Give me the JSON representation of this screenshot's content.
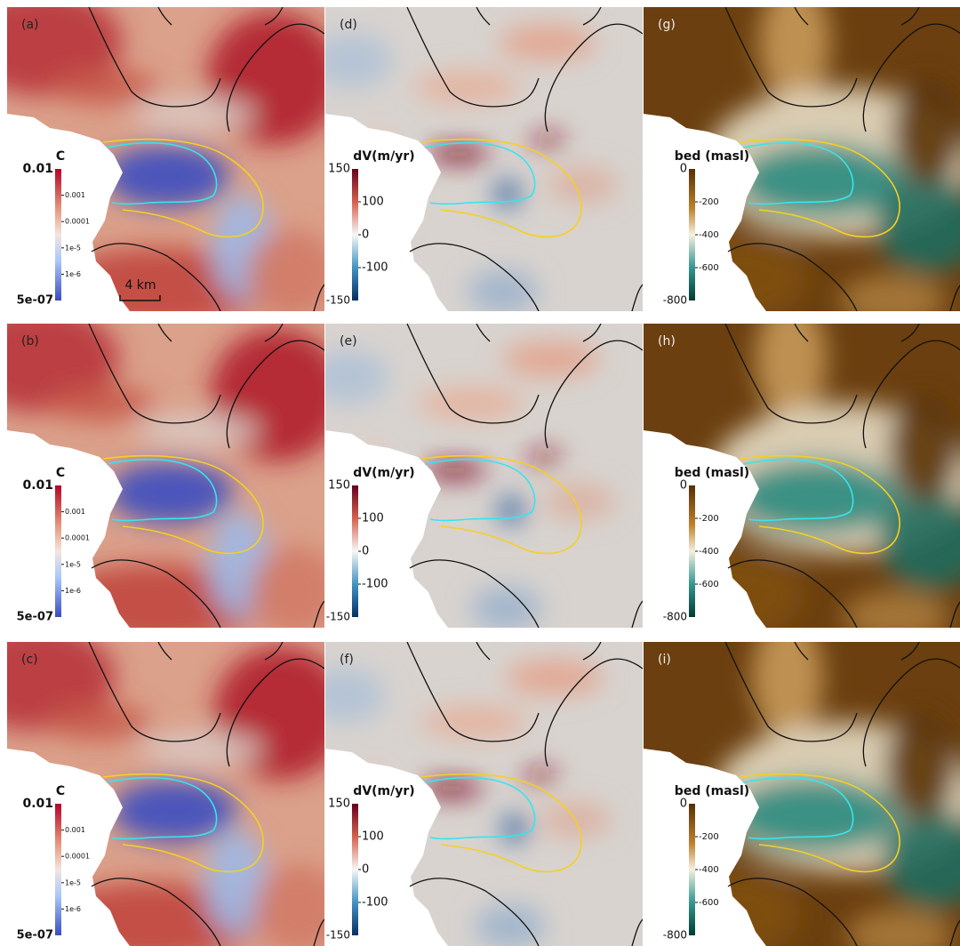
{
  "columns": [
    {
      "panels": [
        "(a)",
        "(b)",
        "(c)"
      ],
      "scale_bar": "4 km",
      "colorbar": {
        "title": "C",
        "top": "0.01",
        "bottom": "5e-07",
        "ticks": [
          "0.001",
          "0.0001",
          "1e-5",
          "1e-6"
        ]
      }
    },
    {
      "panels": [
        "(d)",
        "(e)",
        "(f)"
      ],
      "colorbar": {
        "title": "dV(m/yr)",
        "top": "150",
        "bottom": "-150",
        "ticks": [
          "100",
          "0",
          "-100"
        ]
      }
    },
    {
      "panels": [
        "(g)",
        "(h)",
        "(i)"
      ],
      "colorbar": {
        "title": "bed (masl)",
        "top": "0",
        "bottom": "-800",
        "ticks": [
          "-200",
          "-400",
          "-600"
        ]
      }
    }
  ]
}
